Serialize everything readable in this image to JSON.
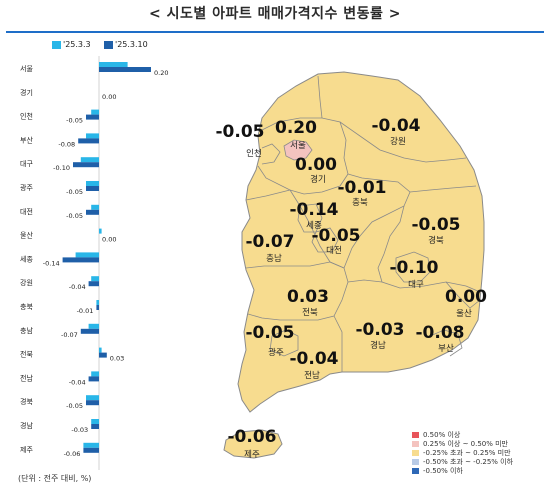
{
  "title": "< 시도별 아파트 매매가격지수 변동률 >",
  "legend": {
    "prev_label": "'25.3.3",
    "curr_label": "'25.3.10",
    "prev_color": "#29b6e8",
    "curr_color": "#1f5fa8"
  },
  "unit_note": "(단위 : 전주 대비, %)",
  "chart_data": {
    "type": "bar",
    "orientation": "horizontal",
    "categories": [
      "서울",
      "경기",
      "인천",
      "부산",
      "대구",
      "광주",
      "대전",
      "울산",
      "세종",
      "강원",
      "충북",
      "충남",
      "전북",
      "전남",
      "경북",
      "경남",
      "제주"
    ],
    "series": [
      {
        "name": "'25.3.3",
        "values": [
          0.11,
          0.0,
          -0.03,
          -0.05,
          -0.07,
          -0.05,
          -0.03,
          0.01,
          -0.09,
          -0.03,
          -0.01,
          -0.04,
          0.01,
          -0.03,
          -0.05,
          -0.03,
          -0.06
        ]
      },
      {
        "name": "'25.3.10",
        "values": [
          0.2,
          0.0,
          -0.05,
          -0.08,
          -0.1,
          -0.05,
          -0.05,
          0.0,
          -0.14,
          -0.04,
          -0.01,
          -0.07,
          0.03,
          -0.04,
          -0.05,
          -0.03,
          -0.06
        ]
      }
    ],
    "data_labels": [
      "0.20",
      "0.00",
      "-0.05",
      "-0.08",
      "-0.10",
      "-0.05",
      "-0.05",
      "0.00",
      "-0.14",
      "-0.04",
      "-0.01",
      "-0.07",
      "0.03",
      "-0.04",
      "-0.05",
      "-0.03",
      "-0.06"
    ]
  },
  "map": {
    "regions": [
      {
        "id": "incheon",
        "name": "인천",
        "value": "-0.05"
      },
      {
        "id": "seoul",
        "name": "서울",
        "value": "0.20"
      },
      {
        "id": "gyeonggi",
        "name": "경기",
        "value": "0.00"
      },
      {
        "id": "gangwon",
        "name": "강원",
        "value": "-0.04"
      },
      {
        "id": "chungbuk",
        "name": "충북",
        "value": "-0.01"
      },
      {
        "id": "sejong",
        "name": "세종",
        "value": "-0.14"
      },
      {
        "id": "daejeon",
        "name": "대전",
        "value": "-0.05"
      },
      {
        "id": "chungnam",
        "name": "충남",
        "value": "-0.07"
      },
      {
        "id": "gyeongbuk",
        "name": "경북",
        "value": "-0.05"
      },
      {
        "id": "daegu",
        "name": "대구",
        "value": "-0.10"
      },
      {
        "id": "ulsan",
        "name": "울산",
        "value": "0.00"
      },
      {
        "id": "jeonbuk",
        "name": "전북",
        "value": "0.03"
      },
      {
        "id": "gwangju",
        "name": "광주",
        "value": "-0.05"
      },
      {
        "id": "jeonnam",
        "name": "전남",
        "value": "-0.04"
      },
      {
        "id": "gyeongnam",
        "name": "경남",
        "value": "-0.03"
      },
      {
        "id": "busan",
        "name": "부산",
        "value": "-0.08"
      },
      {
        "id": "jeju",
        "name": "제주",
        "value": "-0.06"
      }
    ],
    "fill_colors": {
      "land": "#f7dc8f",
      "seoul": "#f4c3bf",
      "outline": "#8a8a8a"
    },
    "legend": [
      {
        "label": "0.50% 이상",
        "color": "#e8545a"
      },
      {
        "label": "0.25% 이상 ~ 0.50% 미만",
        "color": "#f4c3bf"
      },
      {
        "label": "-0.25% 초과 ~ 0.25% 미만",
        "color": "#f7dc8f"
      },
      {
        "label": "-0.50% 초과 ~ -0.25% 이하",
        "color": "#b9cbe6"
      },
      {
        "label": "-0.50% 이하",
        "color": "#2e68b6"
      }
    ]
  }
}
